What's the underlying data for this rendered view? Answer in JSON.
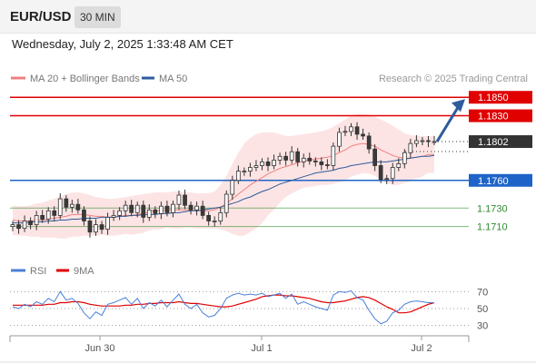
{
  "header": {
    "symbol": "EUR/USD",
    "timeframe": "30 MIN"
  },
  "datetime": "Wednesday, July 2, 2025 1:33:48 AM CET",
  "legend": {
    "ma20": "MA 20 + Bollinger Bands",
    "ma50": "MA 50",
    "ma20_color": "#f08080",
    "ma50_color": "#2e5b9c"
  },
  "credit": "Research © 2025 Trading Central",
  "rsi_legend": {
    "rsi": "RSI",
    "ma9": "9MA",
    "rsi_color": "#4a7fd8",
    "ma9_color": "#e00000"
  },
  "colors": {
    "resistance": "#e00000",
    "current": "#333333",
    "pivot": "#1e64c8",
    "support": "#2e8b2e",
    "bollinger_fill": "#fde4e4",
    "candle_up": "#ffffff",
    "candle_down": "#3a3a3a",
    "arrow": "#2e5b9c"
  },
  "chart_data": {
    "type": "candlestick",
    "price_ylim": [
      1.1688,
      1.1862
    ],
    "rsi_ylim": [
      20,
      80
    ],
    "x_tick_labels": [
      "Jun 30",
      "Jul 1",
      "Jul 2"
    ],
    "price_levels": [
      {
        "label": "1.1850",
        "value": 1.185,
        "kind": "resistance"
      },
      {
        "label": "1.1830",
        "value": 1.183,
        "kind": "resistance"
      },
      {
        "label": "1.1802",
        "value": 1.1802,
        "kind": "current"
      },
      {
        "label": "1.1760",
        "value": 1.176,
        "kind": "pivot"
      },
      {
        "label": "1.1730",
        "value": 1.173,
        "kind": "support"
      },
      {
        "label": "1.1710",
        "value": 1.171,
        "kind": "support"
      }
    ],
    "rsi_ticks": [
      70,
      50,
      30
    ],
    "rsi_reference_lines": [
      70,
      50,
      30
    ],
    "price_closes": [
      1.1712,
      1.1708,
      1.1716,
      1.1712,
      1.1722,
      1.1718,
      1.1727,
      1.1722,
      1.174,
      1.1731,
      1.1734,
      1.1728,
      1.1716,
      1.1704,
      1.1712,
      1.1707,
      1.172,
      1.1722,
      1.1727,
      1.1733,
      1.1725,
      1.1733,
      1.172,
      1.1728,
      1.1724,
      1.1732,
      1.1725,
      1.1734,
      1.1744,
      1.1733,
      1.1728,
      1.1732,
      1.1722,
      1.1716,
      1.1716,
      1.1725,
      1.1745,
      1.176,
      1.177,
      1.177,
      1.1774,
      1.1776,
      1.178,
      1.1776,
      1.1782,
      1.1786,
      1.1782,
      1.1791,
      1.178,
      1.1784,
      1.1781,
      1.178,
      1.1777,
      1.1776,
      1.1797,
      1.1812,
      1.1813,
      1.1818,
      1.181,
      1.1808,
      1.1794,
      1.1776,
      1.1761,
      1.1762,
      1.1774,
      1.1778,
      1.179,
      1.18,
      1.1803,
      1.1803,
      1.1802,
      1.1802
    ],
    "ma20": [
      1.1717,
      1.1716,
      1.1716,
      1.1716,
      1.1717,
      1.1717,
      1.1718,
      1.1719,
      1.172,
      1.1721,
      1.1723,
      1.1723,
      1.1723,
      1.1722,
      1.1721,
      1.1721,
      1.172,
      1.172,
      1.1721,
      1.1722,
      1.1722,
      1.1723,
      1.1724,
      1.1726,
      1.1727,
      1.1727,
      1.1728,
      1.1728,
      1.1728,
      1.1728,
      1.1728,
      1.1727,
      1.1727,
      1.1727,
      1.1728,
      1.1731,
      1.1735,
      1.174,
      1.1745,
      1.175,
      1.1755,
      1.1759,
      1.1763,
      1.1767,
      1.177,
      1.1773,
      1.1775,
      1.1777,
      1.1779,
      1.1781,
      1.1782,
      1.1783,
      1.1784,
      1.1785,
      1.1787,
      1.179,
      1.1793,
      1.1797,
      1.1799,
      1.18,
      1.1799,
      1.1797,
      1.1793,
      1.179,
      1.1787,
      1.1785,
      1.1784,
      1.1784,
      1.1785,
      1.1786,
      1.1788,
      1.1788
    ],
    "ma50": [
      1.1714,
      1.1714,
      1.1714,
      1.1715,
      1.1715,
      1.1715,
      1.1716,
      1.1716,
      1.1717,
      1.1717,
      1.1718,
      1.1718,
      1.1719,
      1.1719,
      1.1719,
      1.172,
      1.172,
      1.172,
      1.1721,
      1.1721,
      1.1722,
      1.1722,
      1.1723,
      1.1723,
      1.1723,
      1.1724,
      1.1724,
      1.1725,
      1.1725,
      1.1726,
      1.1727,
      1.1727,
      1.1728,
      1.1729,
      1.173,
      1.1731,
      1.1733,
      1.1735,
      1.1737,
      1.174,
      1.1742,
      1.1745,
      1.1748,
      1.175,
      1.1753,
      1.1756,
      1.1758,
      1.176,
      1.1762,
      1.1764,
      1.1766,
      1.1768,
      1.1769,
      1.177,
      1.1771,
      1.1773,
      1.1774,
      1.1776,
      1.1777,
      1.1778,
      1.1779,
      1.178,
      1.178,
      1.178,
      1.1781,
      1.1782,
      1.1783,
      1.1784,
      1.1785,
      1.1786,
      1.1786,
      1.1787
    ],
    "bb_upper": [
      1.1733,
      1.1732,
      1.1732,
      1.1733,
      1.1735,
      1.1736,
      1.1738,
      1.174,
      1.1743,
      1.1745,
      1.1747,
      1.1747,
      1.1746,
      1.1744,
      1.1742,
      1.1741,
      1.174,
      1.174,
      1.1741,
      1.1742,
      1.1743,
      1.1744,
      1.1745,
      1.1746,
      1.1747,
      1.1747,
      1.1747,
      1.1748,
      1.1748,
      1.1747,
      1.1747,
      1.1746,
      1.1746,
      1.1746,
      1.1748,
      1.1755,
      1.1765,
      1.1778,
      1.179,
      1.18,
      1.1806,
      1.181,
      1.1812,
      1.1812,
      1.1812,
      1.181,
      1.1808,
      1.1808,
      1.1809,
      1.181,
      1.1811,
      1.1812,
      1.1813,
      1.1815,
      1.1818,
      1.1822,
      1.1826,
      1.183,
      1.1832,
      1.1832,
      1.1831,
      1.1829,
      1.1826,
      1.1823,
      1.1819,
      1.1815,
      1.1811,
      1.1809,
      1.1808,
      1.1808,
      1.1808,
      1.1808
    ],
    "bb_lower": [
      1.1701,
      1.17,
      1.17,
      1.1699,
      1.1699,
      1.1698,
      1.1698,
      1.1698,
      1.1697,
      1.1697,
      1.1699,
      1.1699,
      1.17,
      1.17,
      1.17,
      1.1701,
      1.17,
      1.17,
      1.1701,
      1.1702,
      1.1701,
      1.1702,
      1.1703,
      1.1706,
      1.1707,
      1.1707,
      1.1709,
      1.1708,
      1.1708,
      1.1709,
      1.1709,
      1.1708,
      1.1708,
      1.1708,
      1.1708,
      1.1707,
      1.1705,
      1.1702,
      1.17,
      1.17,
      1.1704,
      1.1708,
      1.1714,
      1.1722,
      1.1728,
      1.1736,
      1.1742,
      1.1746,
      1.1749,
      1.1752,
      1.1753,
      1.1754,
      1.1755,
      1.1755,
      1.1756,
      1.1758,
      1.176,
      1.1764,
      1.1766,
      1.1768,
      1.1767,
      1.1765,
      1.176,
      1.1757,
      1.1755,
      1.1755,
      1.1757,
      1.1759,
      1.1762,
      1.1764,
      1.1768,
      1.1768
    ],
    "rsi": [
      52,
      50,
      55,
      52,
      58,
      55,
      62,
      58,
      70,
      60,
      62,
      56,
      45,
      38,
      46,
      42,
      55,
      57,
      60,
      63,
      55,
      62,
      50,
      57,
      53,
      60,
      52,
      60,
      67,
      55,
      50,
      55,
      45,
      40,
      42,
      50,
      62,
      66,
      68,
      66,
      67,
      66,
      68,
      64,
      66,
      68,
      62,
      67,
      55,
      58,
      55,
      52,
      50,
      48,
      66,
      70,
      69,
      71,
      63,
      60,
      48,
      38,
      32,
      35,
      45,
      48,
      55,
      58,
      59,
      58,
      57,
      57
    ],
    "rsi_9ma": [
      54,
      54,
      54,
      54,
      54,
      54,
      55,
      55,
      57,
      57,
      58,
      58,
      57,
      55,
      54,
      53,
      53,
      53,
      53,
      54,
      54,
      55,
      55,
      56,
      56,
      57,
      57,
      57,
      58,
      57,
      56,
      56,
      55,
      54,
      53,
      52,
      52,
      53,
      55,
      57,
      59,
      61,
      64,
      65,
      66,
      66,
      65,
      65,
      64,
      63,
      62,
      60,
      58,
      57,
      57,
      58,
      59,
      61,
      63,
      64,
      63,
      60,
      56,
      52,
      49,
      45,
      45,
      46,
      49,
      52,
      55,
      57
    ]
  }
}
